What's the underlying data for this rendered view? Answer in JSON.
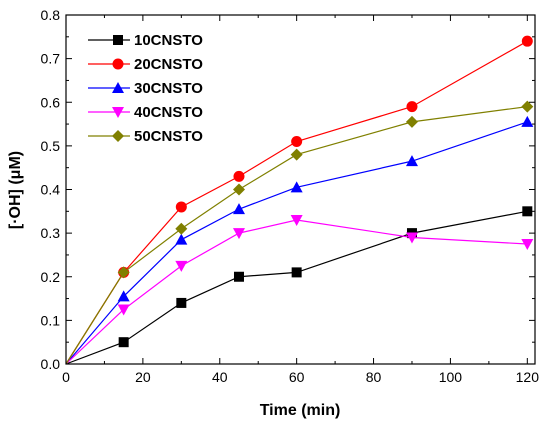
{
  "chart_data": {
    "type": "line",
    "title": "",
    "xlabel": "Time (min)",
    "ylabel": "[·OH] (μM)",
    "xlim": [
      0,
      122
    ],
    "ylim": [
      0,
      0.8
    ],
    "x_ticks": [
      0,
      20,
      40,
      60,
      80,
      100,
      120
    ],
    "y_ticks": [
      0.0,
      0.1,
      0.2,
      0.3,
      0.4,
      0.5,
      0.6,
      0.7,
      0.8
    ],
    "x_tick_labels": [
      "0",
      "20",
      "40",
      "60",
      "80",
      "100",
      "120"
    ],
    "y_tick_labels": [
      "0.0",
      "0.1",
      "0.2",
      "0.3",
      "0.4",
      "0.5",
      "0.6",
      "0.7",
      "0.8"
    ],
    "grid": false,
    "legend_position": "top-left",
    "x": [
      0,
      15,
      30,
      45,
      60,
      90,
      120
    ],
    "series": [
      {
        "name": "10CNSTO",
        "color": "#000000",
        "marker": "square",
        "values": [
          0,
          0.05,
          0.14,
          0.2,
          0.21,
          0.3,
          0.35
        ]
      },
      {
        "name": "20CNSTO",
        "color": "#ff0000",
        "marker": "circle",
        "values": [
          0,
          0.21,
          0.36,
          0.43,
          0.51,
          0.59,
          0.74
        ]
      },
      {
        "name": "30CNSTO",
        "color": "#0000ff",
        "marker": "triangle-up",
        "values": [
          0,
          0.155,
          0.285,
          0.355,
          0.405,
          0.465,
          0.555
        ]
      },
      {
        "name": "40CNSTO",
        "color": "#ff00ff",
        "marker": "triangle-down",
        "values": [
          0,
          0.125,
          0.225,
          0.3,
          0.33,
          0.29,
          0.275
        ]
      },
      {
        "name": "50CNSTO",
        "color": "#808000",
        "marker": "diamond",
        "values": [
          0,
          0.21,
          0.31,
          0.4,
          0.48,
          0.555,
          0.59
        ]
      }
    ]
  }
}
